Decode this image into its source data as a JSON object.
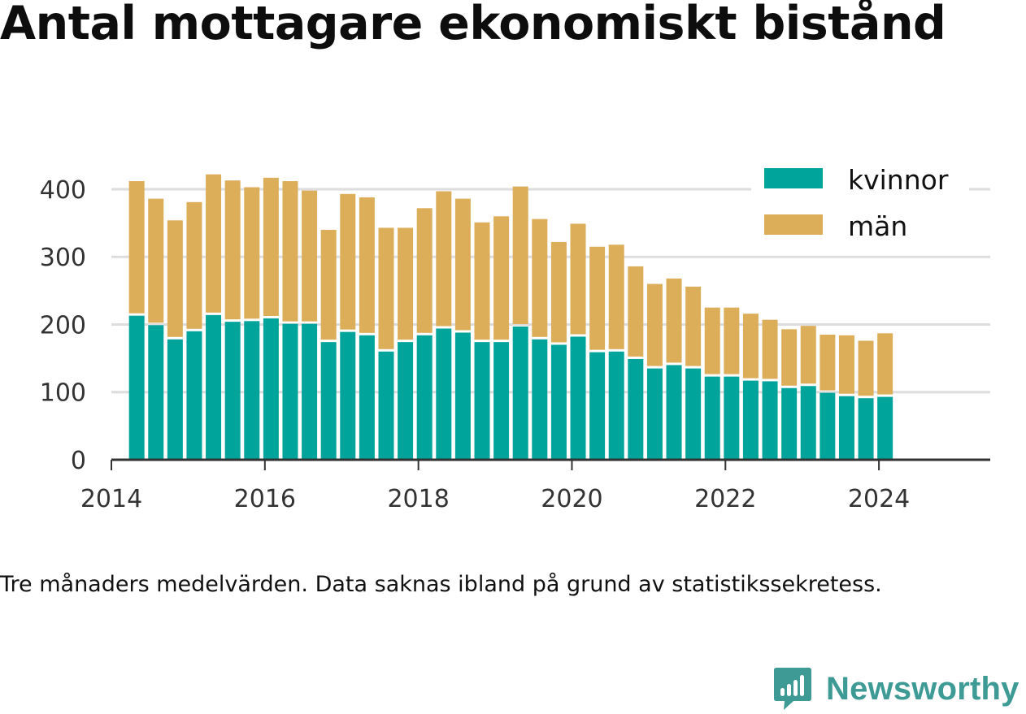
{
  "title": "Antal mottagare ekonomiskt bistånd",
  "caption": "Tre månaders medelvärden. Data saknas ibland på grund av statistikssekretess.",
  "brand": {
    "name": "Newsworthy",
    "icon": "newsworthy-logo-icon"
  },
  "colors": {
    "kvinnor": "#00a49a",
    "man": "#dcae5a",
    "grid": "#dddddd",
    "axis": "#333333"
  },
  "chart_data": {
    "type": "bar",
    "stacked": true,
    "grid": true,
    "legend_position": "top-right",
    "series_names": [
      "kvinnor",
      "män"
    ],
    "x_ticks": [
      "2014",
      "2016",
      "2018",
      "2020",
      "2022",
      "2024"
    ],
    "y_ticks": [
      "0",
      "100",
      "200",
      "300",
      "400"
    ],
    "ylim": [
      0,
      430
    ],
    "xlim": [
      2014.0,
      2025.45
    ],
    "x": [
      2014.33,
      2014.58,
      2014.83,
      2015.08,
      2015.33,
      2015.58,
      2015.83,
      2016.08,
      2016.33,
      2016.58,
      2016.83,
      2017.08,
      2017.33,
      2017.58,
      2017.83,
      2018.08,
      2018.33,
      2018.58,
      2018.83,
      2019.08,
      2019.33,
      2019.58,
      2019.83,
      2020.08,
      2020.33,
      2020.58,
      2020.83,
      2021.08,
      2021.33,
      2021.58,
      2021.83,
      2022.08,
      2022.33,
      2022.58,
      2022.83,
      2023.08,
      2023.33,
      2023.58,
      2023.83,
      2024.08
    ],
    "series": [
      {
        "name": "kvinnor",
        "values": [
          213,
          199,
          178,
          190,
          214,
          204,
          205,
          209,
          201,
          201,
          174,
          189,
          184,
          160,
          174,
          184,
          194,
          188,
          174,
          174,
          197,
          178,
          170,
          182,
          159,
          160,
          149,
          135,
          140,
          135,
          123,
          123,
          117,
          116,
          106,
          109,
          99,
          94,
          91,
          93
        ]
      },
      {
        "name": "män",
        "values": [
          199,
          187,
          176,
          191,
          208,
          209,
          198,
          208,
          211,
          197,
          166,
          204,
          204,
          183,
          169,
          188,
          203,
          198,
          177,
          186,
          207,
          178,
          152,
          167,
          156,
          158,
          137,
          125,
          128,
          121,
          102,
          102,
          99,
          91,
          87,
          89,
          86,
          90,
          85,
          94
        ]
      }
    ]
  }
}
